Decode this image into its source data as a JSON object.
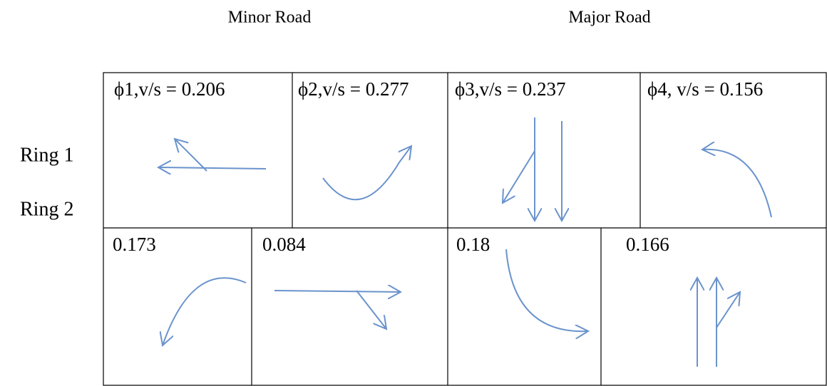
{
  "headers": [
    "Minor Road",
    "Major Road"
  ],
  "rings": [
    {
      "label": "Ring 1",
      "phases": [
        "ϕ1,v/s  = 0.206",
        "ϕ2,v/s = 0.277",
        "ϕ3,v/s = 0.237",
        "ϕ4, v/s = 0.156"
      ]
    },
    {
      "label": "Ring 2",
      "phases": [
        "0.173",
        "0.084",
        "0.18",
        "0.166"
      ]
    }
  ]
}
